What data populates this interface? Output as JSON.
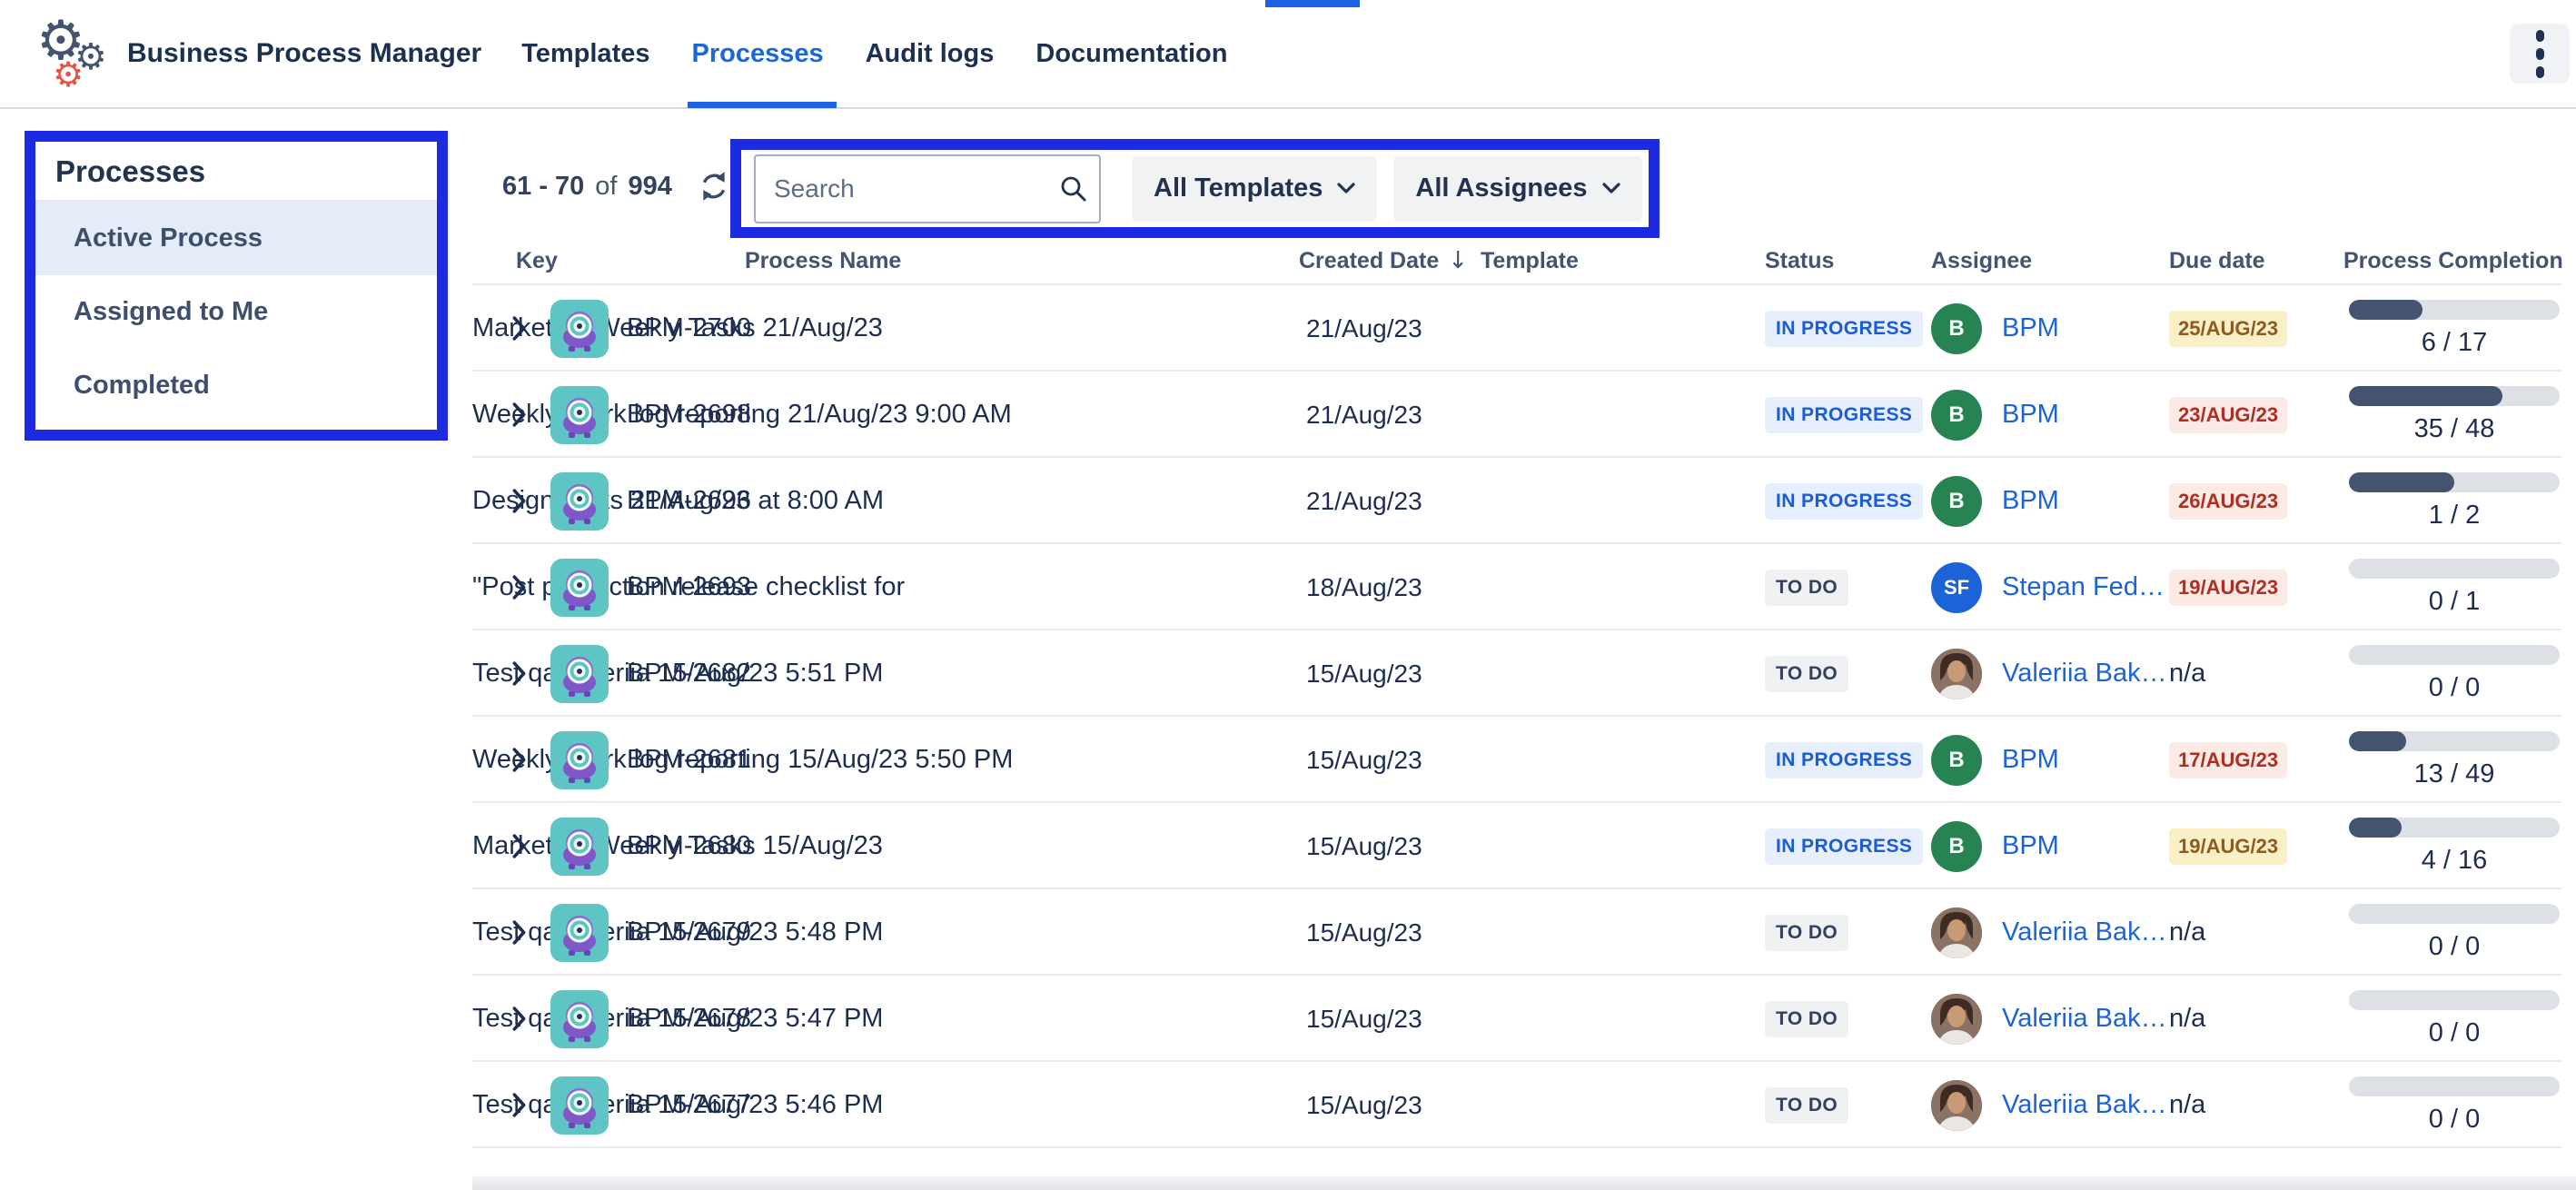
{
  "app": {
    "title": "Business Process Manager",
    "nav": [
      {
        "label": "Templates",
        "active": false
      },
      {
        "label": "Processes",
        "active": true
      },
      {
        "label": "Audit logs",
        "active": false
      },
      {
        "label": "Documentation",
        "active": false
      }
    ]
  },
  "icons": {
    "logo": "gears",
    "kebab": "vertical-dots",
    "refresh": "circular-arrows",
    "search": "magnifier",
    "dropdown": "chevron-down",
    "sort": "arrow-down",
    "expand": "chevron-right",
    "process": "robot-avatar"
  },
  "colors": {
    "accent_blue": "#1868DB",
    "annotation_blue": "#1C2BE2",
    "status_inprogress_bg": "#E7EFFD",
    "status_inprogress_text": "#1A5CD8",
    "status_todo_bg": "#F0F1F3",
    "status_todo_text": "#33415E",
    "due_yellow_bg": "#FAF0C8",
    "due_yellow_text": "#8F5A1E",
    "due_red_bg": "#FCEAE6",
    "due_red_text": "#AE2E24",
    "progress_fill": "#44546F",
    "avatar_green": "#278352",
    "avatar_blue": "#1D63D8",
    "process_icon_teal": "#5EC4C4",
    "process_icon_purple": "#7E57C8",
    "logo_red": "#E8543F"
  },
  "sidebar": {
    "title": "Processes",
    "items": [
      {
        "label": "Active Process",
        "selected": true
      },
      {
        "label": "Assigned to Me",
        "selected": false
      },
      {
        "label": "Completed",
        "selected": false
      }
    ]
  },
  "toolbar": {
    "pagination": {
      "range": "61 - 70",
      "of_label": "of",
      "total": "994"
    },
    "search": {
      "placeholder": "Search",
      "value": ""
    },
    "filters": [
      {
        "label": "All Templates"
      },
      {
        "label": "All Assignees"
      }
    ]
  },
  "table": {
    "sort_indicator": "↓",
    "columns": [
      {
        "label": "Key"
      },
      {
        "label": "Process Name"
      },
      {
        "label": "Created Date",
        "sorted": "desc"
      },
      {
        "label": "Template"
      },
      {
        "label": "Status"
      },
      {
        "label": "Assignee"
      },
      {
        "label": "Due date"
      },
      {
        "label": "Process Completion"
      }
    ],
    "rows": [
      {
        "key": "BPM-2700",
        "name": "Marketing Weekly Tasks 21/Aug/23",
        "created": "21/Aug/23",
        "template": "Marketing Weekly Tas…",
        "status": {
          "label": "IN PROGRESS",
          "style": "inprogress"
        },
        "assignee": {
          "name": "BPM",
          "initials": "B",
          "avatar": "green"
        },
        "due": {
          "label": "25/AUG/23",
          "style": "yellow"
        },
        "completion": {
          "label": "6 / 17",
          "percent": 35
        }
      },
      {
        "key": "BPM-2698",
        "name": "Weekly Work log reporting 21/Aug/23 9:00 AM",
        "created": "21/Aug/23",
        "template": "Weekly Work log repo…",
        "status": {
          "label": "IN PROGRESS",
          "style": "inprogress"
        },
        "assignee": {
          "name": "BPM",
          "initials": "B",
          "avatar": "green"
        },
        "due": {
          "label": "23/AUG/23",
          "style": "red"
        },
        "completion": {
          "label": "35 / 48",
          "percent": 73
        }
      },
      {
        "key": "BPM-2696",
        "name": "Design tasks 21/Aug/23 at 8:00 AM",
        "created": "21/Aug/23",
        "template": "Design tasks",
        "status": {
          "label": "IN PROGRESS",
          "style": "inprogress"
        },
        "assignee": {
          "name": "BPM",
          "initials": "B",
          "avatar": "green"
        },
        "due": {
          "label": "26/AUG/23",
          "style": "red"
        },
        "completion": {
          "label": "1 / 2",
          "percent": 50
        }
      },
      {
        "key": "BPM-2693",
        "name": "\"Post production release checklist for TIS/TBS\"…",
        "created": "18/Aug/23",
        "template": "Post production relea…",
        "status": {
          "label": "TO DO",
          "style": "todo"
        },
        "assignee": {
          "name": "Stepan Fed…",
          "initials": "SF",
          "avatar": "blue"
        },
        "due": {
          "label": "19/AUG/23",
          "style": "red"
        },
        "completion": {
          "label": "0 / 1",
          "percent": 0
        }
      },
      {
        "key": "BPM-2682",
        "name": "Test qa Valeriia 15/Aug/23 5:51 PM",
        "created": "15/Aug/23",
        "template": "Test qa Valeriia",
        "status": {
          "label": "TO DO",
          "style": "todo"
        },
        "assignee": {
          "name": "Valeriia Bak…",
          "initials": "",
          "avatar": "photo"
        },
        "due": {
          "label": "n/a",
          "style": "plain"
        },
        "completion": {
          "label": "0 / 0",
          "percent": 0
        }
      },
      {
        "key": "BPM-2681",
        "name": "Weekly Work log reporting 15/Aug/23 5:50 PM",
        "created": "15/Aug/23",
        "template": "Weekly Work log repo…",
        "status": {
          "label": "IN PROGRESS",
          "style": "inprogress"
        },
        "assignee": {
          "name": "BPM",
          "initials": "B",
          "avatar": "green"
        },
        "due": {
          "label": "17/AUG/23",
          "style": "red"
        },
        "completion": {
          "label": "13 / 49",
          "percent": 27
        }
      },
      {
        "key": "BPM-2680",
        "name": "Marketing Weekly Tasks 15/Aug/23",
        "created": "15/Aug/23",
        "template": "Marketing Weekly Tas…",
        "status": {
          "label": "IN PROGRESS",
          "style": "inprogress"
        },
        "assignee": {
          "name": "BPM",
          "initials": "B",
          "avatar": "green"
        },
        "due": {
          "label": "19/AUG/23",
          "style": "yellow"
        },
        "completion": {
          "label": "4 / 16",
          "percent": 25
        }
      },
      {
        "key": "BPM-2679",
        "name": "Test qa Valeriia 15/Aug/23 5:48 PM",
        "created": "15/Aug/23",
        "template": "Test qa Valeriia",
        "status": {
          "label": "TO DO",
          "style": "todo"
        },
        "assignee": {
          "name": "Valeriia Bak…",
          "initials": "",
          "avatar": "photo"
        },
        "due": {
          "label": "n/a",
          "style": "plain"
        },
        "completion": {
          "label": "0 / 0",
          "percent": 0
        }
      },
      {
        "key": "BPM-2678",
        "name": "Test qa Valeriia 15/Aug/23 5:47 PM",
        "created": "15/Aug/23",
        "template": "Test qa Valeriia",
        "status": {
          "label": "TO DO",
          "style": "todo"
        },
        "assignee": {
          "name": "Valeriia Bak…",
          "initials": "",
          "avatar": "photo"
        },
        "due": {
          "label": "n/a",
          "style": "plain"
        },
        "completion": {
          "label": "0 / 0",
          "percent": 0
        }
      },
      {
        "key": "BPM-2677",
        "name": "Test qa Valeriia 15/Aug/23 5:46 PM",
        "created": "15/Aug/23",
        "template": "Test qa Valeriia",
        "status": {
          "label": "TO DO",
          "style": "todo"
        },
        "assignee": {
          "name": "Valeriia Bak…",
          "initials": "",
          "avatar": "photo"
        },
        "due": {
          "label": "n/a",
          "style": "plain"
        },
        "completion": {
          "label": "0 / 0",
          "percent": 0
        }
      }
    ]
  }
}
